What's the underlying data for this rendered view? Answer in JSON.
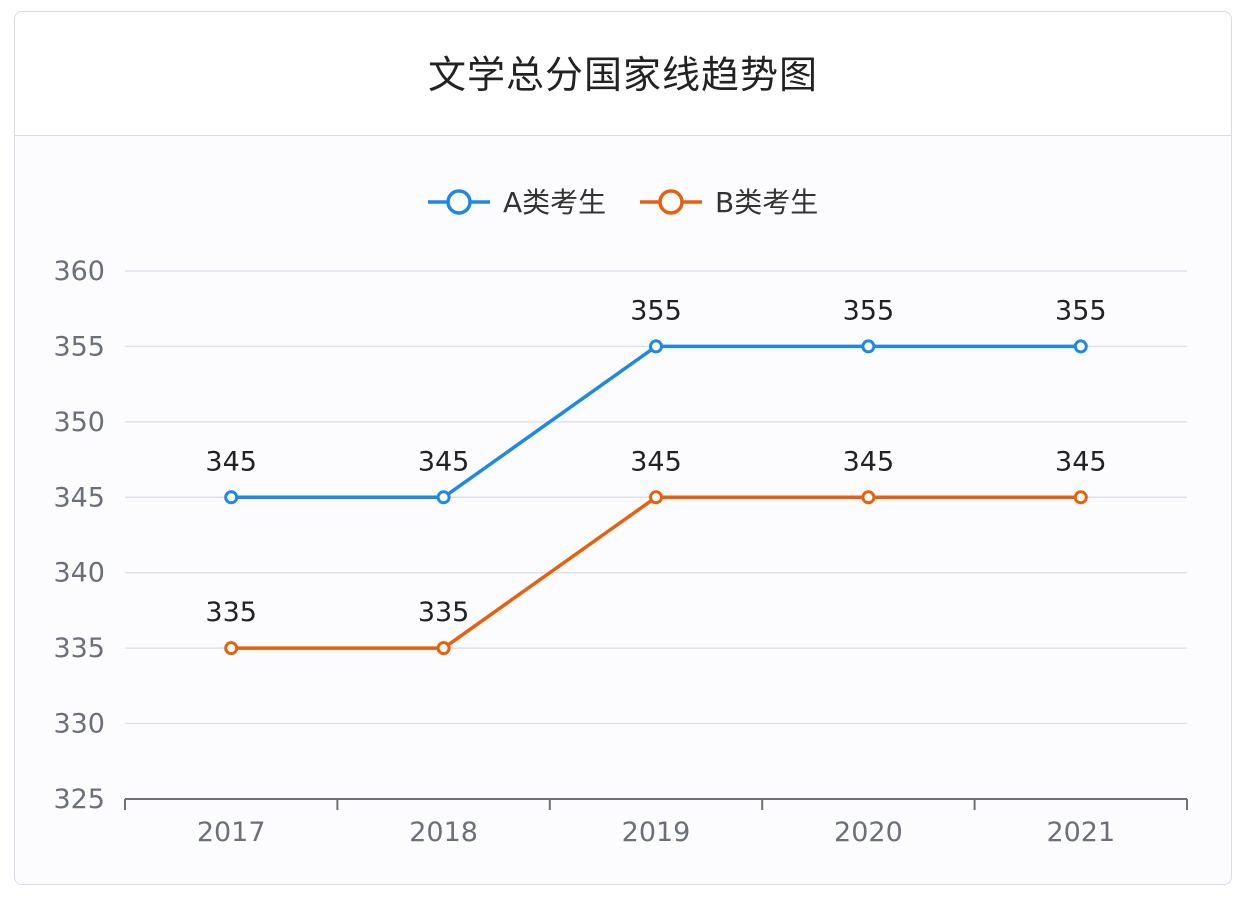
{
  "chart_data": {
    "type": "line",
    "title": "文学总分国家线趋势图",
    "categories": [
      "2017",
      "2018",
      "2019",
      "2020",
      "2021"
    ],
    "series": [
      {
        "name": "A类考生",
        "values": [
          345,
          345,
          355,
          355,
          355
        ],
        "color": "#1e88e5"
      },
      {
        "name": "B类考生",
        "values": [
          335,
          335,
          345,
          345,
          345
        ],
        "color": "#e8600e"
      }
    ],
    "ylim": [
      325,
      360
    ],
    "yticks": [
      325,
      330,
      335,
      340,
      345,
      350,
      355,
      360
    ],
    "grid": true,
    "legend_position": "top-center",
    "data_labels": true
  }
}
